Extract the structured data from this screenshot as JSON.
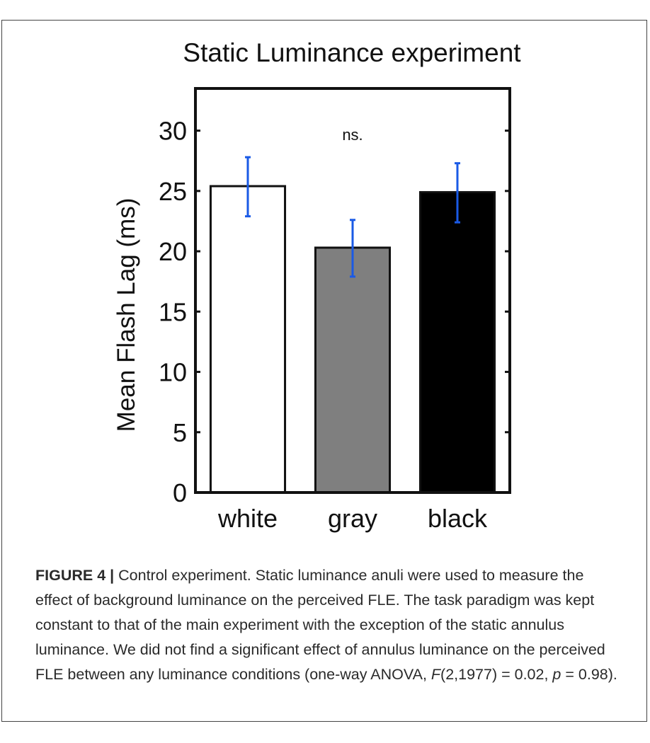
{
  "chart_data": {
    "type": "bar",
    "title": "Static Luminance experiment",
    "ylabel": "Mean Flash Lag (ms)",
    "xlabel": "",
    "categories": [
      "white",
      "gray",
      "black"
    ],
    "values": [
      25.4,
      20.3,
      24.9
    ],
    "error_low": [
      22.9,
      17.9,
      22.4
    ],
    "error_high": [
      27.8,
      22.6,
      27.3
    ],
    "bar_colors": [
      "#ffffff",
      "#7f7f7f",
      "#000000"
    ],
    "error_color": "#1a5ae6",
    "ylim": [
      0,
      33.5
    ],
    "yticks": [
      0,
      5,
      10,
      15,
      20,
      25,
      30
    ],
    "annotation": "ns.",
    "annotation_y": 29.7,
    "grid": false
  },
  "caption": {
    "label": "FIGURE 4 |",
    "part1": " Control experiment. Static luminance anuli were used to measure the effect of background luminance on the perceived FLE. The task paradigm was kept constant to that of the main experiment with the exception of the static annulus luminance. We did not find a significant effect of annulus luminance on the perceived FLE between any luminance conditions (one-way ANOVA, ",
    "f_symbol": "F",
    "part2": "(2,1977) = 0.02, ",
    "p_symbol": "p",
    "part3": " = 0.98)."
  }
}
